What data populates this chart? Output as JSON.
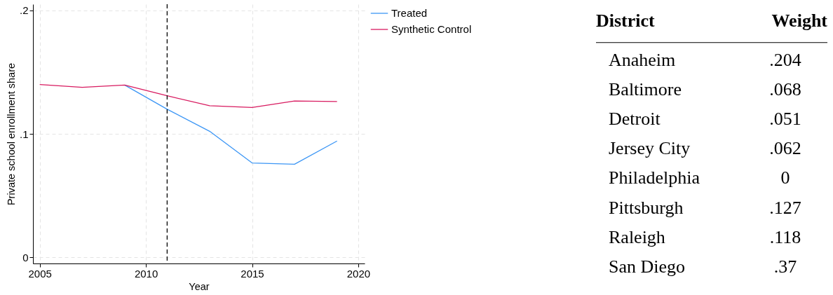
{
  "chart_data": [
    {
      "type": "line",
      "xlabel": "Year",
      "ylabel": "Private school enrollment share",
      "x": [
        2005,
        2007,
        2009,
        2011,
        2013,
        2015,
        2017,
        2019
      ],
      "series": [
        {
          "name": "Treated",
          "color": "#3c96f5",
          "values": [
            null,
            null,
            0.1395,
            0.1199,
            0.1021,
            0.0764,
            0.0754,
            0.0942
          ]
        },
        {
          "name": "Synthetic Control",
          "color": "#d81b60",
          "values": [
            0.1399,
            0.1377,
            0.1395,
            0.1308,
            0.1228,
            0.1213,
            0.1266,
            0.1262
          ]
        }
      ],
      "xlim": [
        2004.68,
        2020.3
      ],
      "xticks": [
        2005,
        2010,
        2015,
        2020
      ],
      "ylim": [
        -0.005,
        0.205
      ],
      "yticks": [
        0,
        {
          "value": 0.1,
          "label": ".1"
        },
        {
          "value": 0.2,
          "label": ".2"
        }
      ],
      "ref_lines": [
        {
          "axis": "x",
          "value": 2011,
          "color": "#000000",
          "line_style": "dashed"
        }
      ],
      "grid": true,
      "legend": "right"
    },
    {
      "type": "other",
      "xlabel": "District",
      "ylabel": "Weight",
      "categories": [
        "Anaheim",
        "Baltimore",
        "Detroit",
        "Jersey City",
        "Philadelphia",
        "Pittsburgh",
        "Raleigh",
        "San Diego"
      ],
      "value_labels": [
        ".204",
        ".068",
        ".051",
        ".062",
        "0",
        ".127",
        ".118",
        ".37"
      ]
    }
  ]
}
